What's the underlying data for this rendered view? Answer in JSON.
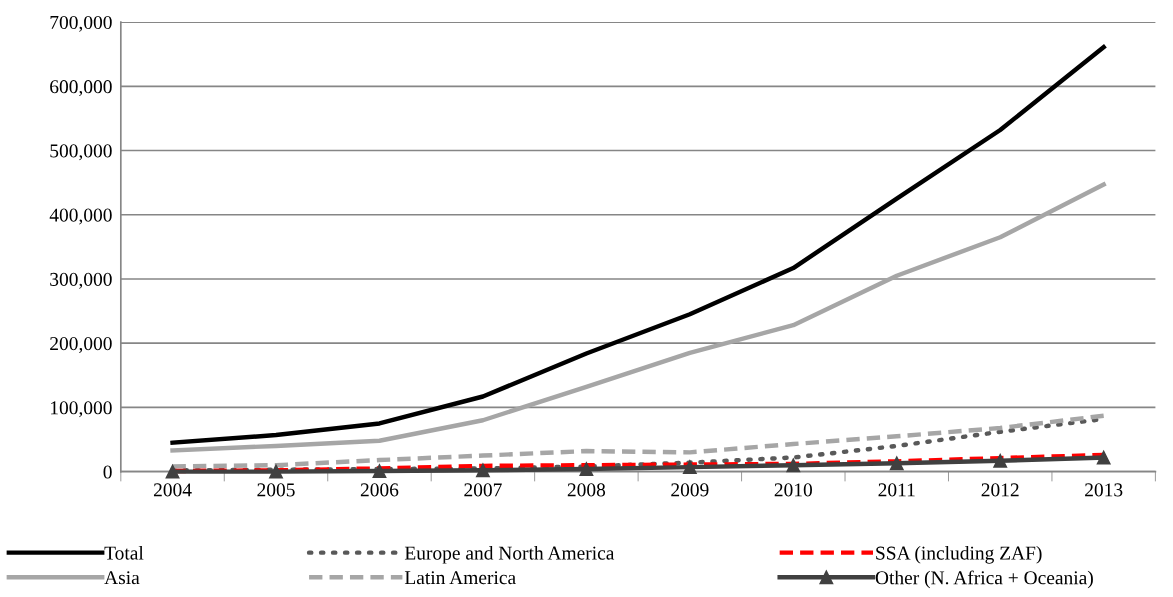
{
  "chart_data": {
    "type": "line",
    "categories": [
      "2004",
      "2005",
      "2006",
      "2007",
      "2008",
      "2009",
      "2010",
      "2011",
      "2012",
      "2013"
    ],
    "series": [
      {
        "name": "Total",
        "color": "#000000",
        "line_style": "solid",
        "marker": "none",
        "values": [
          45000,
          57000,
          75000,
          117000,
          184000,
          245000,
          317000,
          425000,
          532000,
          661000
        ]
      },
      {
        "name": "Asia",
        "color": "#a6a6a6",
        "line_style": "solid",
        "marker": "none",
        "values": [
          33000,
          40000,
          48000,
          80000,
          132000,
          185000,
          228000,
          305000,
          365000,
          447000
        ]
      },
      {
        "name": "Europe and North America",
        "color": "#595959",
        "line_style": "dotted",
        "marker": "none",
        "values": [
          2000,
          3000,
          4000,
          5000,
          8000,
          14000,
          22000,
          40000,
          62000,
          82000
        ]
      },
      {
        "name": "Latin America",
        "color": "#a6a6a6",
        "line_style": "dashed",
        "marker": "none",
        "values": [
          8000,
          10000,
          18000,
          25000,
          32000,
          30000,
          43000,
          55000,
          68000,
          87000
        ]
      },
      {
        "name": "SSA (including ZAF)",
        "color": "#ff0000",
        "line_style": "dashed",
        "marker": "none",
        "values": [
          1000,
          2000,
          5000,
          9000,
          10000,
          11000,
          12000,
          16000,
          21000,
          26000
        ]
      },
      {
        "name": "Other (N. Africa + Oceania)",
        "color": "#404040",
        "line_style": "solid",
        "marker": "triangle",
        "values": [
          0,
          0,
          1000,
          2000,
          4000,
          7000,
          10000,
          13000,
          17000,
          22000
        ]
      }
    ],
    "ylim": [
      0,
      700000
    ],
    "yticks": [
      {
        "value": 0,
        "label": "0"
      },
      {
        "value": 100000,
        "label": "100,000"
      },
      {
        "value": 200000,
        "label": "200,000"
      },
      {
        "value": 300000,
        "label": "300,000"
      },
      {
        "value": 400000,
        "label": "400,000"
      },
      {
        "value": 500000,
        "label": "500,000"
      },
      {
        "value": 600000,
        "label": "600,000"
      },
      {
        "value": 700000,
        "label": "700,000"
      }
    ],
    "grid": "y",
    "legend": "bottom"
  }
}
